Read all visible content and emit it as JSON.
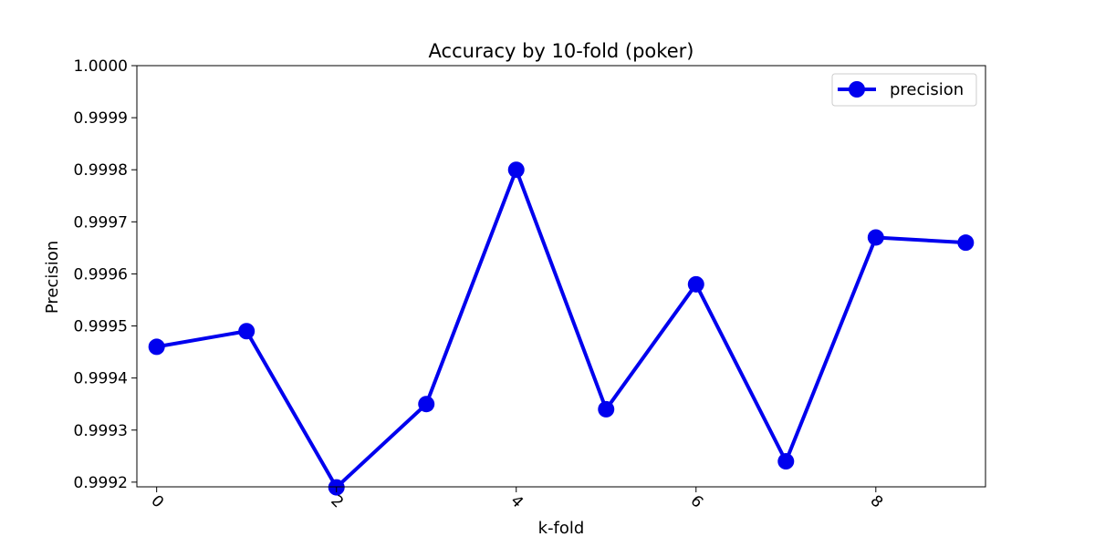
{
  "chart_data": {
    "type": "line",
    "title": "Accuracy by 10-fold (poker)",
    "xlabel": "k-fold",
    "ylabel": "Precision",
    "x": [
      0,
      1,
      2,
      3,
      4,
      5,
      6,
      7,
      8,
      9
    ],
    "series": [
      {
        "name": "precision",
        "color": "#0000ee",
        "marker": "circle",
        "values": [
          0.99946,
          0.99949,
          0.99919,
          0.99935,
          0.9998,
          0.99934,
          0.99958,
          0.99924,
          0.99967,
          0.99966
        ]
      }
    ],
    "xlim": [
      -0.22,
      9.22
    ],
    "ylim": [
      0.999191,
      1.0
    ],
    "xticks": [
      0,
      2,
      4,
      6,
      8
    ],
    "xtick_labels": [
      "0",
      "2",
      "4",
      "6",
      "8"
    ],
    "yticks": [
      0.9992,
      0.9993,
      0.9994,
      0.9995,
      0.9996,
      0.9997,
      0.9998,
      0.9999,
      1.0
    ],
    "ytick_labels": [
      "0.9992",
      "0.9993",
      "0.9994",
      "0.9995",
      "0.9996",
      "0.9997",
      "0.9998",
      "0.9999",
      "1.0000"
    ],
    "xtick_rotation": 45,
    "grid": false,
    "legend": {
      "position": "top-right",
      "entries": [
        "precision"
      ]
    }
  }
}
